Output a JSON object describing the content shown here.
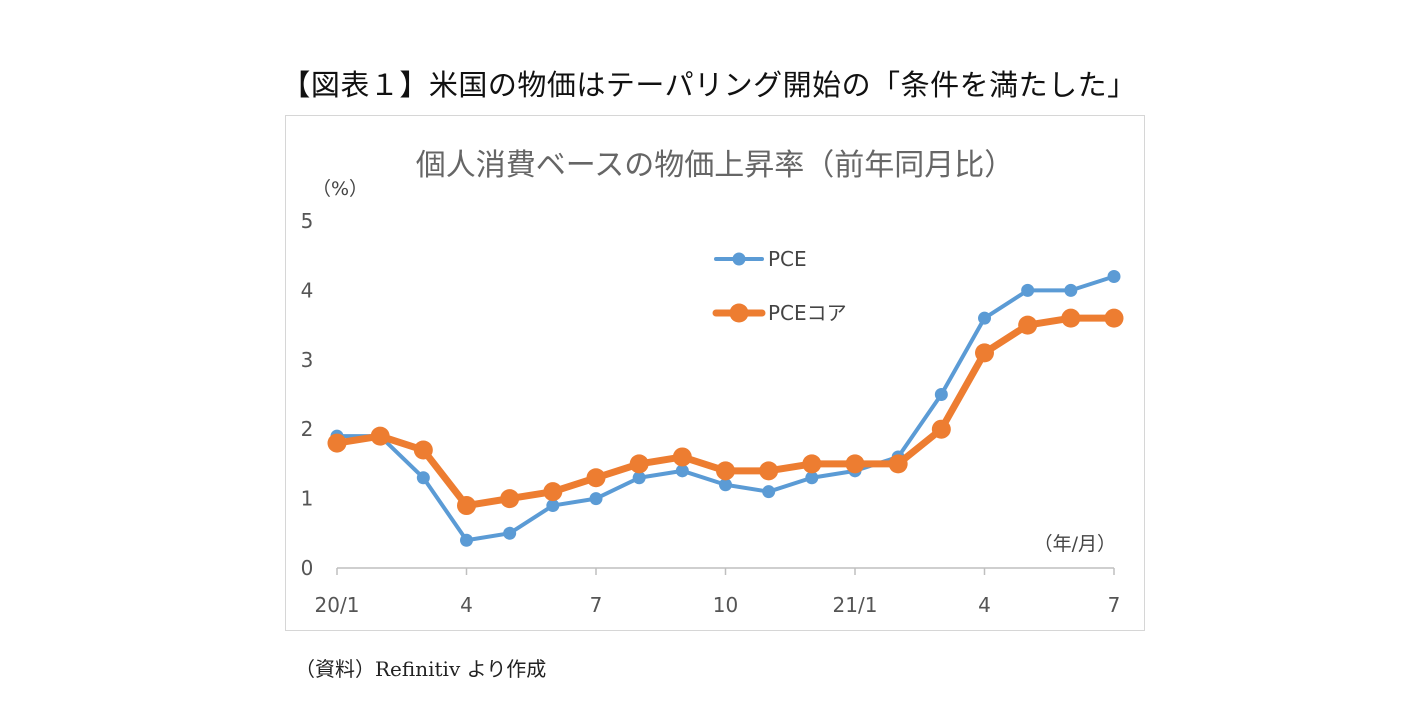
{
  "figure_title": "【図表１】米国の物価はテーパリング開始の「条件を満たした」",
  "source_note": "（資料）Refinitiv より作成",
  "chart_data": {
    "type": "line",
    "title": "個人消費ベースの物価上昇率（前年同月比）",
    "ylabel": "（%）",
    "xlabel": "（年/月）",
    "ylim": [
      0,
      5
    ],
    "yticks": [
      "0",
      "1",
      "2",
      "3",
      "4",
      "5"
    ],
    "grid": false,
    "legend_position": "top-right",
    "x": [
      "20/1",
      "20/2",
      "20/3",
      "20/4",
      "20/5",
      "20/6",
      "20/7",
      "20/8",
      "20/9",
      "20/10",
      "20/11",
      "20/12",
      "21/1",
      "21/2",
      "21/3",
      "21/4",
      "21/5",
      "21/6",
      "21/7"
    ],
    "xtick_labels": [
      {
        "index": 0,
        "label": "20/1"
      },
      {
        "index": 3,
        "label": "4"
      },
      {
        "index": 6,
        "label": "7"
      },
      {
        "index": 9,
        "label": "10"
      },
      {
        "index": 12,
        "label": "21/1"
      },
      {
        "index": 15,
        "label": "4"
      },
      {
        "index": 18,
        "label": "7"
      }
    ],
    "series": [
      {
        "name": "PCE",
        "color": "#5b9bd5",
        "values": [
          1.9,
          1.9,
          1.3,
          0.4,
          0.5,
          0.9,
          1.0,
          1.3,
          1.4,
          1.2,
          1.1,
          1.3,
          1.4,
          1.6,
          2.5,
          3.6,
          4.0,
          4.0,
          4.2
        ]
      },
      {
        "name": "PCEコア",
        "color": "#ed7d31",
        "values": [
          1.8,
          1.9,
          1.7,
          0.9,
          1.0,
          1.1,
          1.3,
          1.5,
          1.6,
          1.4,
          1.4,
          1.5,
          1.5,
          1.5,
          2.0,
          3.1,
          3.5,
          3.6,
          3.6
        ]
      }
    ]
  }
}
